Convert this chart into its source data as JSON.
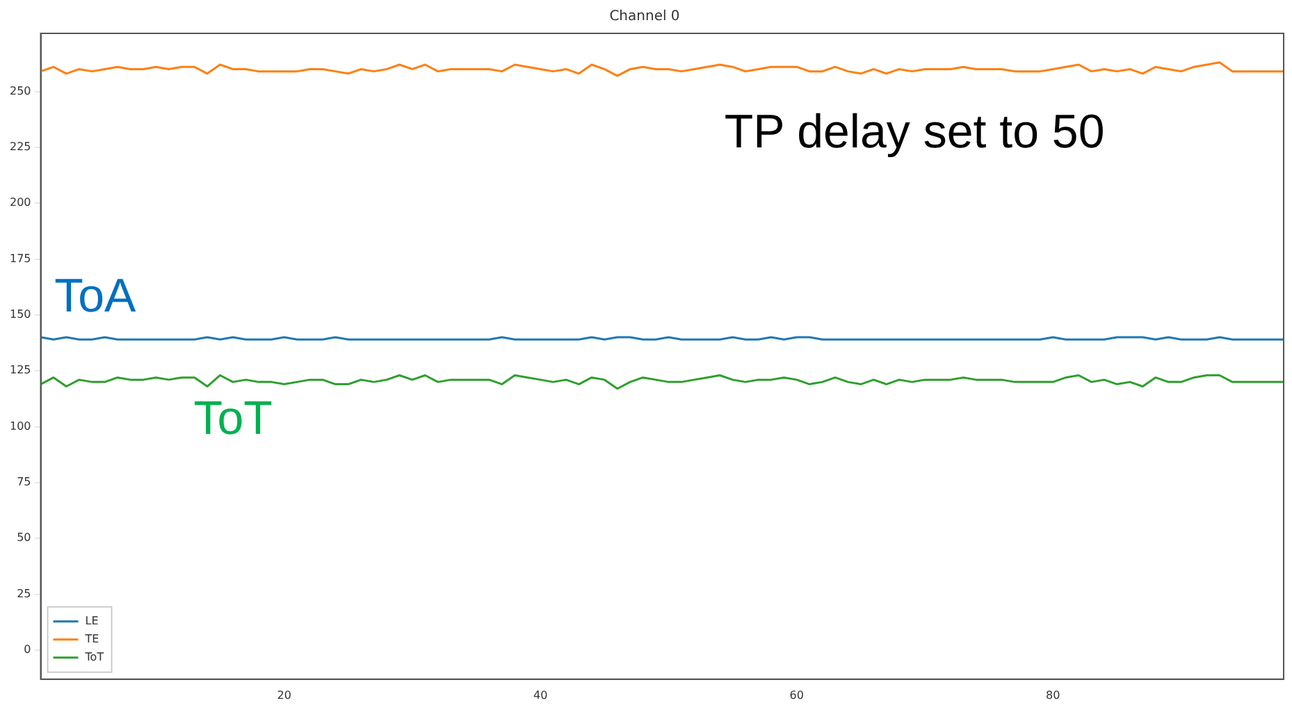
{
  "chart_data": {
    "type": "line",
    "title": "Channel 0",
    "x": [
      1,
      2,
      3,
      4,
      5,
      6,
      7,
      8,
      9,
      10,
      11,
      12,
      13,
      14,
      15,
      16,
      17,
      18,
      19,
      20,
      21,
      22,
      23,
      24,
      25,
      26,
      27,
      28,
      29,
      30,
      31,
      32,
      33,
      34,
      35,
      36,
      37,
      38,
      39,
      40,
      41,
      42,
      43,
      44,
      45,
      46,
      47,
      48,
      49,
      50,
      51,
      52,
      53,
      54,
      55,
      56,
      57,
      58,
      59,
      60,
      61,
      62,
      63,
      64,
      65,
      66,
      67,
      68,
      69,
      70,
      71,
      72,
      73,
      74,
      75,
      76,
      77,
      78,
      79,
      80,
      81,
      82,
      83,
      84,
      85,
      86,
      87,
      88,
      89,
      90,
      91,
      92,
      93,
      94,
      95,
      96,
      97,
      98
    ],
    "series": [
      {
        "name": "LE",
        "color": "#1f77b4",
        "values": [
          140,
          139,
          140,
          139,
          139,
          140,
          139,
          139,
          139,
          139,
          139,
          139,
          139,
          140,
          139,
          140,
          139,
          139,
          139,
          140,
          139,
          139,
          139,
          140,
          139,
          139,
          139,
          139,
          139,
          139,
          139,
          139,
          139,
          139,
          139,
          139,
          140,
          139,
          139,
          139,
          139,
          139,
          139,
          140,
          139,
          140,
          140,
          139,
          139,
          140,
          139,
          139,
          139,
          139,
          140,
          139,
          139,
          140,
          139,
          140,
          140,
          139,
          139,
          139,
          139,
          139,
          139,
          139,
          139,
          139,
          139,
          139,
          139,
          139,
          139,
          139,
          139,
          139,
          139,
          140,
          139,
          139,
          139,
          139,
          140,
          140,
          140,
          139,
          140,
          139,
          139,
          139,
          140,
          139,
          139,
          139,
          139,
          139
        ]
      },
      {
        "name": "TE",
        "color": "#ff7f0e",
        "values": [
          259,
          261,
          258,
          260,
          259,
          260,
          261,
          260,
          260,
          261,
          260,
          261,
          261,
          258,
          262,
          260,
          260,
          259,
          259,
          259,
          259,
          260,
          260,
          259,
          258,
          260,
          259,
          260,
          262,
          260,
          262,
          259,
          260,
          260,
          260,
          260,
          259,
          262,
          261,
          260,
          259,
          260,
          258,
          262,
          260,
          257,
          260,
          261,
          260,
          260,
          259,
          260,
          261,
          262,
          261,
          259,
          260,
          261,
          261,
          261,
          259,
          259,
          261,
          259,
          258,
          260,
          258,
          260,
          259,
          260,
          260,
          260,
          261,
          260,
          260,
          260,
          259,
          259,
          259,
          260,
          261,
          262,
          259,
          260,
          259,
          260,
          258,
          261,
          260,
          259,
          261,
          262,
          263,
          259,
          259,
          259,
          259,
          259
        ]
      },
      {
        "name": "ToT",
        "color": "#2ca02c",
        "values": [
          119,
          122,
          118,
          121,
          120,
          120,
          122,
          121,
          121,
          122,
          121,
          122,
          122,
          118,
          123,
          120,
          121,
          120,
          120,
          119,
          120,
          121,
          121,
          119,
          119,
          121,
          120,
          121,
          123,
          121,
          123,
          120,
          121,
          121,
          121,
          121,
          119,
          123,
          122,
          121,
          120,
          121,
          119,
          122,
          121,
          117,
          120,
          122,
          121,
          120,
          120,
          121,
          122,
          123,
          121,
          120,
          121,
          121,
          122,
          121,
          119,
          120,
          122,
          120,
          119,
          121,
          119,
          121,
          120,
          121,
          121,
          121,
          122,
          121,
          121,
          121,
          120,
          120,
          120,
          120,
          122,
          123,
          120,
          121,
          119,
          120,
          118,
          122,
          120,
          120,
          122,
          123,
          123,
          120,
          120,
          120,
          120,
          120
        ]
      }
    ],
    "xlim": [
      1,
      98
    ],
    "xticks": [
      20,
      40,
      60,
      80
    ],
    "ylim": [
      -13,
      276
    ],
    "yticks": [
      0,
      25,
      50,
      75,
      100,
      125,
      150,
      175,
      200,
      225,
      250
    ],
    "grid": false,
    "legend": "bottom left",
    "annotations": [
      "TP delay set to 50",
      "ToA",
      "ToT"
    ]
  }
}
